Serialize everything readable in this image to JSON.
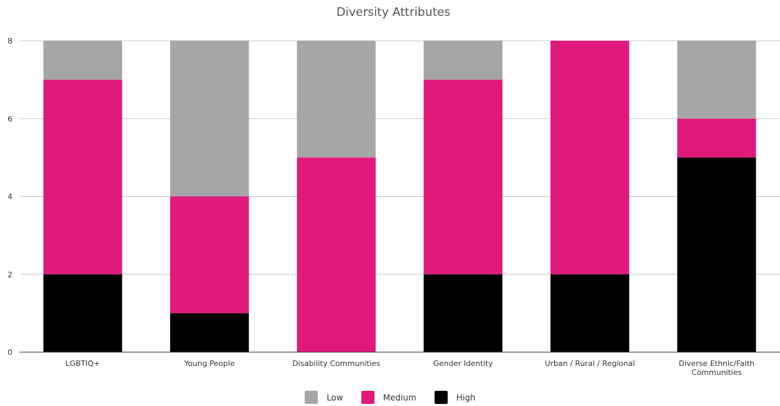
{
  "chart_data": {
    "type": "bar",
    "stacked": true,
    "title": "Diversity Attributes",
    "categories": [
      "LGBTIQ+",
      "Young People",
      "Disability Communities",
      "Gender Identity",
      "Urban / Rural / Regional",
      "Diverse Ethnic/Faith Communities"
    ],
    "category_lines": [
      [
        "LGBTIQ+"
      ],
      [
        "Young People"
      ],
      [
        "Disability Communities"
      ],
      [
        "Gender Identity"
      ],
      [
        "Urban / Rural / Regional"
      ],
      [
        "Diverse Ethnic/Faith",
        "Communities"
      ]
    ],
    "series": [
      {
        "name": "High",
        "color": "#000000",
        "values": [
          2,
          1,
          0,
          2,
          2,
          5
        ]
      },
      {
        "name": "Medium",
        "color": "#e0197d",
        "values": [
          5,
          3,
          5,
          5,
          6,
          1
        ]
      },
      {
        "name": "Low",
        "color": "#a6a6a6",
        "values": [
          1,
          4,
          3,
          1,
          0,
          2
        ]
      }
    ],
    "ylim": [
      0,
      8
    ],
    "yticks": [
      0,
      2,
      4,
      6,
      8
    ],
    "grid": true,
    "legend_position": "bottom",
    "legend_order": [
      "Low",
      "Medium",
      "High"
    ],
    "xlabel": "",
    "ylabel": ""
  }
}
